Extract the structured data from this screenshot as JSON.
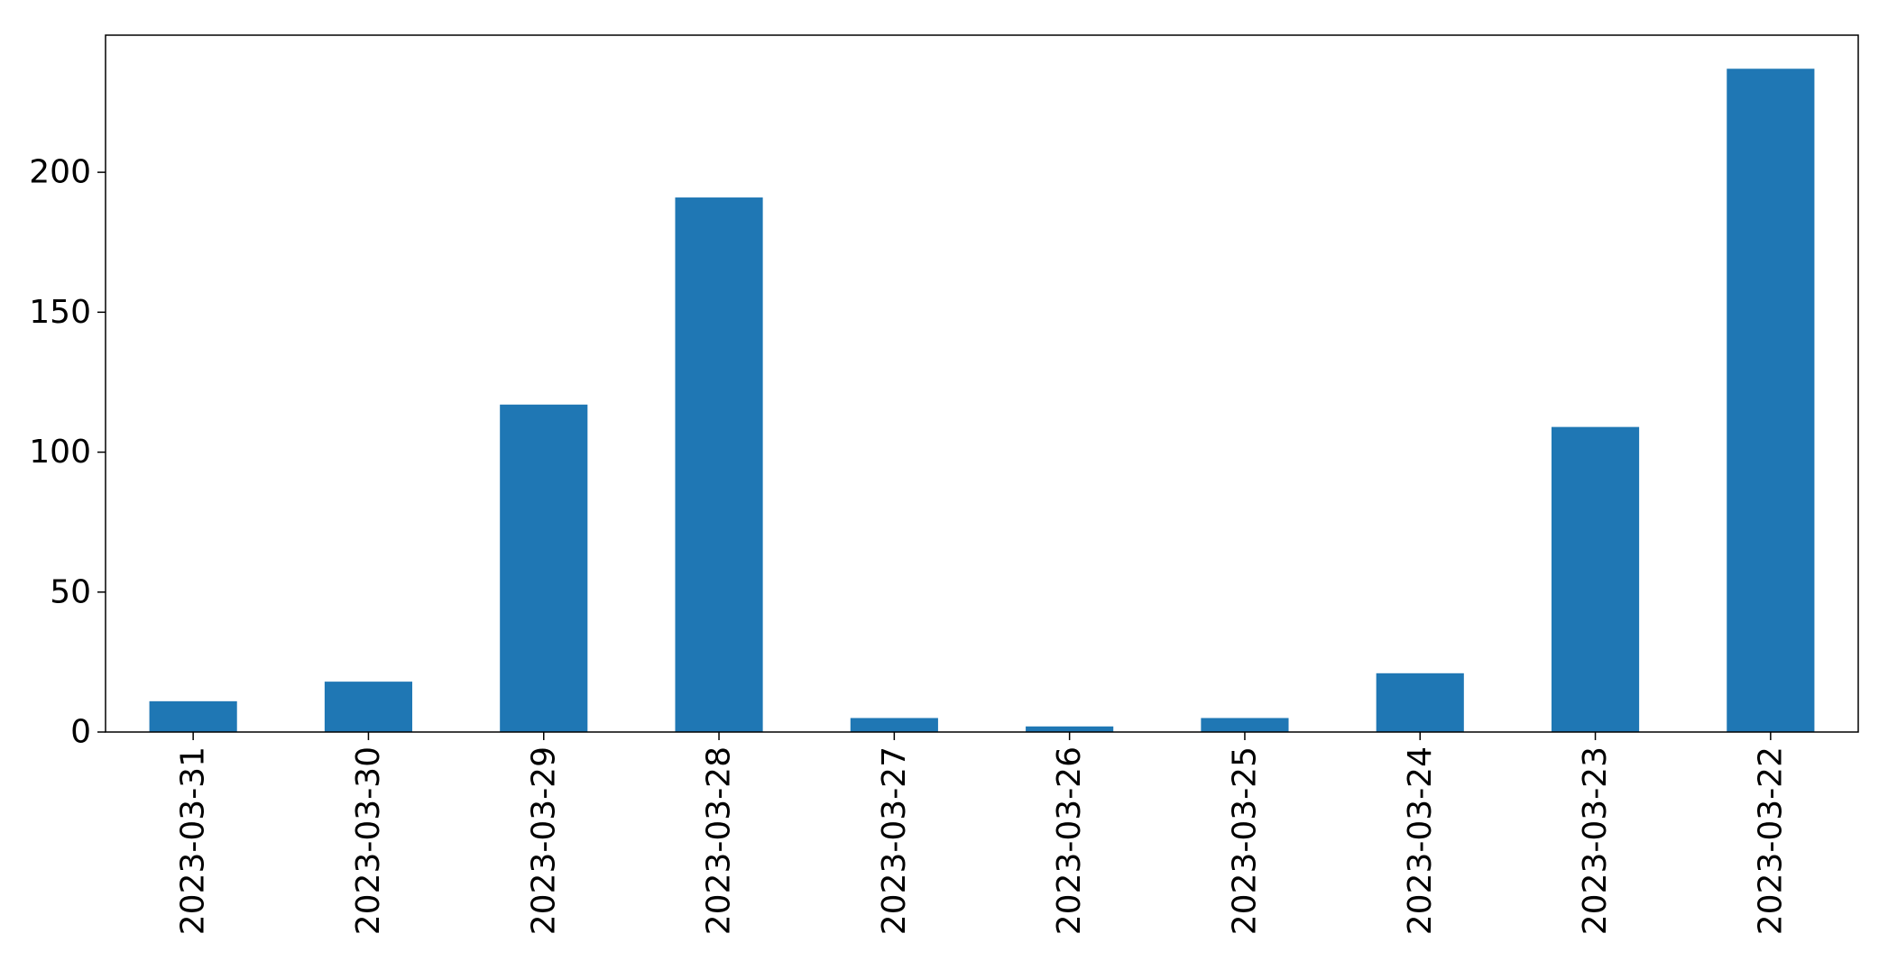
{
  "chart_data": {
    "type": "bar",
    "title": "",
    "xlabel": "",
    "ylabel": "",
    "categories": [
      "2023-03-31",
      "2023-03-30",
      "2023-03-29",
      "2023-03-28",
      "2023-03-27",
      "2023-03-26",
      "2023-03-25",
      "2023-03-24",
      "2023-03-23",
      "2023-03-22"
    ],
    "values": [
      11,
      18,
      117,
      191,
      5,
      2,
      5,
      21,
      109,
      237
    ],
    "ylim": [
      0,
      249
    ],
    "yticks": [
      0,
      50,
      100,
      150,
      200
    ],
    "ytick_labels": [
      "0",
      "50",
      "100",
      "150",
      "200"
    ],
    "bar_color": "#1f77b4",
    "grid": false,
    "legend": "none"
  }
}
